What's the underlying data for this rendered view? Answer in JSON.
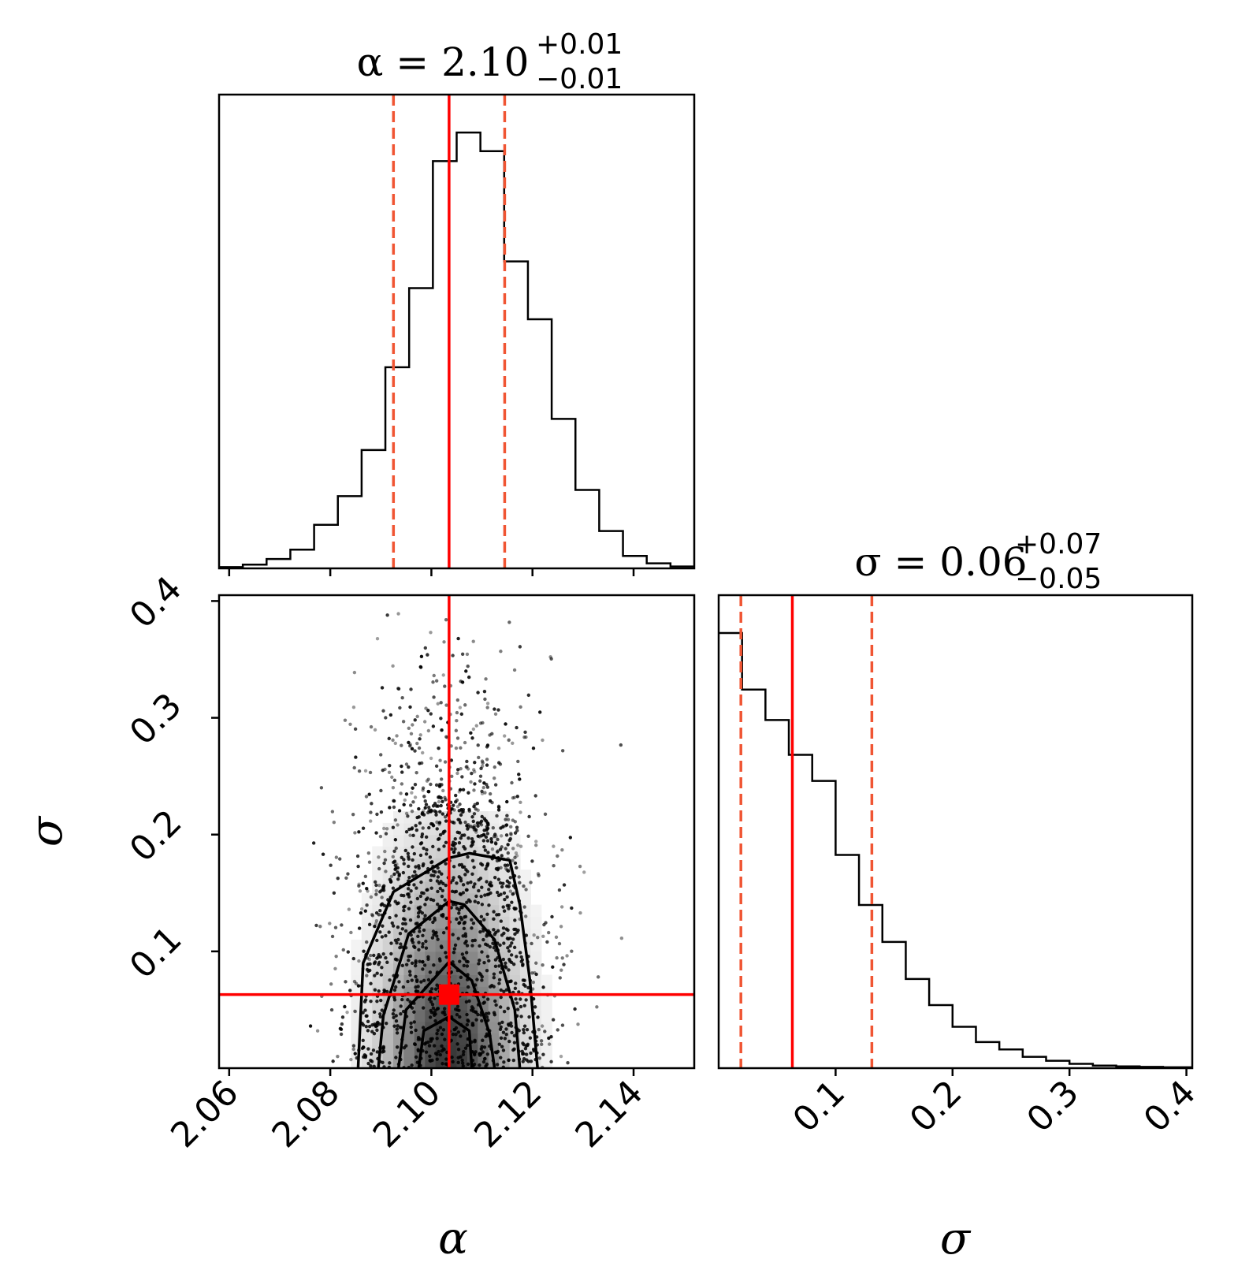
{
  "chart_data": {
    "type": "corner",
    "parameters": [
      {
        "name": "alpha",
        "symbol": "α",
        "title": {
          "lhs": "α = ",
          "median": "2.10",
          "plus": "+0.01",
          "minus": "−0.01"
        },
        "xlim": [
          2.058,
          2.152
        ],
        "ticks": [
          "2.06",
          "2.08",
          "2.10",
          "2.12",
          "2.14"
        ],
        "tick_values": [
          2.06,
          2.08,
          2.1,
          2.12,
          2.14
        ],
        "truth": 2.1035,
        "quantiles": [
          2.0925,
          2.1145
        ],
        "histogram": {
          "edges": [
            2.058,
            2.0627,
            2.0674,
            2.0721,
            2.0768,
            2.0815,
            2.0862,
            2.0909,
            2.0956,
            2.1003,
            2.105,
            2.1097,
            2.1144,
            2.1191,
            2.1238,
            2.1285,
            2.1332,
            2.1379,
            2.1426,
            2.1473,
            2.152
          ],
          "counts": [
            0.2,
            0.6,
            1.5,
            3.0,
            7.0,
            11.6,
            19.0,
            32.3,
            45.0,
            65.4,
            70.0,
            67.0,
            49.3,
            40.0,
            24.0,
            12.6,
            6.0,
            2.0,
            0.8,
            0.3
          ]
        }
      },
      {
        "name": "sigma",
        "symbol": "σ",
        "title": {
          "lhs": "σ = ",
          "median": "0.06",
          "plus": "+0.07",
          "minus": "−0.05"
        },
        "xlim": [
          0.0,
          0.405
        ],
        "ticks": [
          "0.1",
          "0.2",
          "0.3",
          "0.4"
        ],
        "tick_values": [
          0.1,
          0.2,
          0.3,
          0.4
        ],
        "truth": 0.063,
        "quantiles": [
          0.019,
          0.131
        ],
        "histogram": {
          "edges": [
            0.0,
            0.02,
            0.04,
            0.06,
            0.08,
            0.1,
            0.12,
            0.14,
            0.16,
            0.18,
            0.2,
            0.22,
            0.24,
            0.26,
            0.28,
            0.3,
            0.32,
            0.34,
            0.36,
            0.38,
            0.405
          ],
          "counts": [
            100,
            87,
            80,
            72,
            66,
            49,
            37.5,
            29,
            20.5,
            14.5,
            9.5,
            6.0,
            4.3,
            2.6,
            1.7,
            1.0,
            0.6,
            0.4,
            0.3,
            0.2
          ]
        }
      }
    ],
    "joint": {
      "x": "alpha",
      "y": "sigma",
      "ylim": [
        0.0,
        0.405
      ],
      "yticks": [
        "0.1",
        "0.2",
        "0.3",
        "0.4"
      ],
      "ytick_values": [
        0.1,
        0.2,
        0.3,
        0.4
      ],
      "density": {
        "center": [
          2.1035,
          0.0
        ],
        "spread": [
          0.0085,
          0.11
        ],
        "grid_cols": 22,
        "grid_rows": 22
      },
      "scatter_cloud": {
        "alpha_range": [
          2.062,
          2.15
        ],
        "sigma_max": 0.4
      },
      "contours": [
        {
          "level": "0.5-sigma",
          "points": [
            [
              2.0975,
              0.0
            ],
            [
              2.0985,
              0.032
            ],
            [
              2.1035,
              0.044
            ],
            [
              2.1075,
              0.032
            ],
            [
              2.108,
              0.0
            ]
          ]
        },
        {
          "level": "1-sigma",
          "points": [
            [
              2.0935,
              0.0
            ],
            [
              2.095,
              0.05
            ],
            [
              2.1035,
              0.091
            ],
            [
              2.108,
              0.075
            ],
            [
              2.1115,
              0.03
            ],
            [
              2.1125,
              0.0
            ]
          ]
        },
        {
          "level": "1.5-sigma",
          "points": [
            [
              2.0895,
              0.0
            ],
            [
              2.0905,
              0.045
            ],
            [
              2.0955,
              0.115
            ],
            [
              2.1035,
              0.143
            ],
            [
              2.1065,
              0.14
            ],
            [
              2.1125,
              0.11
            ],
            [
              2.1165,
              0.05
            ],
            [
              2.1175,
              0.0
            ]
          ]
        },
        {
          "level": "2-sigma",
          "points": [
            [
              2.0855,
              0.0
            ],
            [
              2.0865,
              0.09
            ],
            [
              2.0925,
              0.151
            ],
            [
              2.1035,
              0.18
            ],
            [
              2.1075,
              0.184
            ],
            [
              2.1155,
              0.178
            ],
            [
              2.1175,
              0.14
            ],
            [
              2.1195,
              0.075
            ],
            [
              2.121,
              0.0
            ]
          ]
        }
      ],
      "truth_point": [
        2.1035,
        0.063
      ]
    },
    "colors": {
      "truth": "#ff0000",
      "quantile": "#f05533",
      "histogram": "#000000",
      "points": "#000000"
    }
  }
}
